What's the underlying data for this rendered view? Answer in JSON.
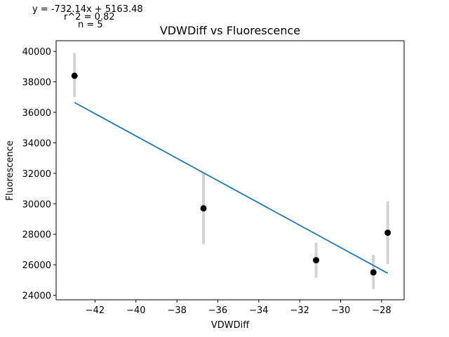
{
  "chart_data": {
    "type": "scatter",
    "title": "VDWDiff vs Fluorescence",
    "xlabel": "VDWDiff",
    "ylabel": "Fluorescence",
    "annotations": [
      "y = -732.14x + 5163.48",
      "r^2 = 0.82",
      "n = 5"
    ],
    "xlim": [
      -43.9,
      -26.9
    ],
    "ylim": [
      23700,
      40700
    ],
    "x_ticks": [
      -42,
      -40,
      -38,
      -36,
      -34,
      -32,
      -30,
      -28
    ],
    "x_tick_labels": [
      "−42",
      "−40",
      "−38",
      "−36",
      "−34",
      "−32",
      "−30",
      "−28"
    ],
    "y_ticks": [
      24000,
      26000,
      28000,
      30000,
      32000,
      34000,
      36000,
      38000,
      40000
    ],
    "y_tick_labels": [
      "24000",
      "26000",
      "28000",
      "30000",
      "32000",
      "34000",
      "36000",
      "38000",
      "40000"
    ],
    "grid": false,
    "series": [
      {
        "points": [
          {
            "x": -43.0,
            "y": 38400,
            "err_low": 37000,
            "err_high": 39900
          },
          {
            "x": -36.7,
            "y": 29700,
            "err_low": 27350,
            "err_high": 32050
          },
          {
            "x": -31.2,
            "y": 26300,
            "err_low": 25150,
            "err_high": 27450
          },
          {
            "x": -28.4,
            "y": 25500,
            "err_low": 24400,
            "err_high": 26650
          },
          {
            "x": -27.7,
            "y": 28100,
            "err_low": 26050,
            "err_high": 30150
          }
        ],
        "marker_color": "#000000",
        "errorbar_color": "#d3d3d3"
      }
    ],
    "fit_line": {
      "slope": -732.14,
      "intercept": 5163.48,
      "x_range": [
        -43.0,
        -27.7
      ],
      "color": "#1f77b4"
    }
  }
}
